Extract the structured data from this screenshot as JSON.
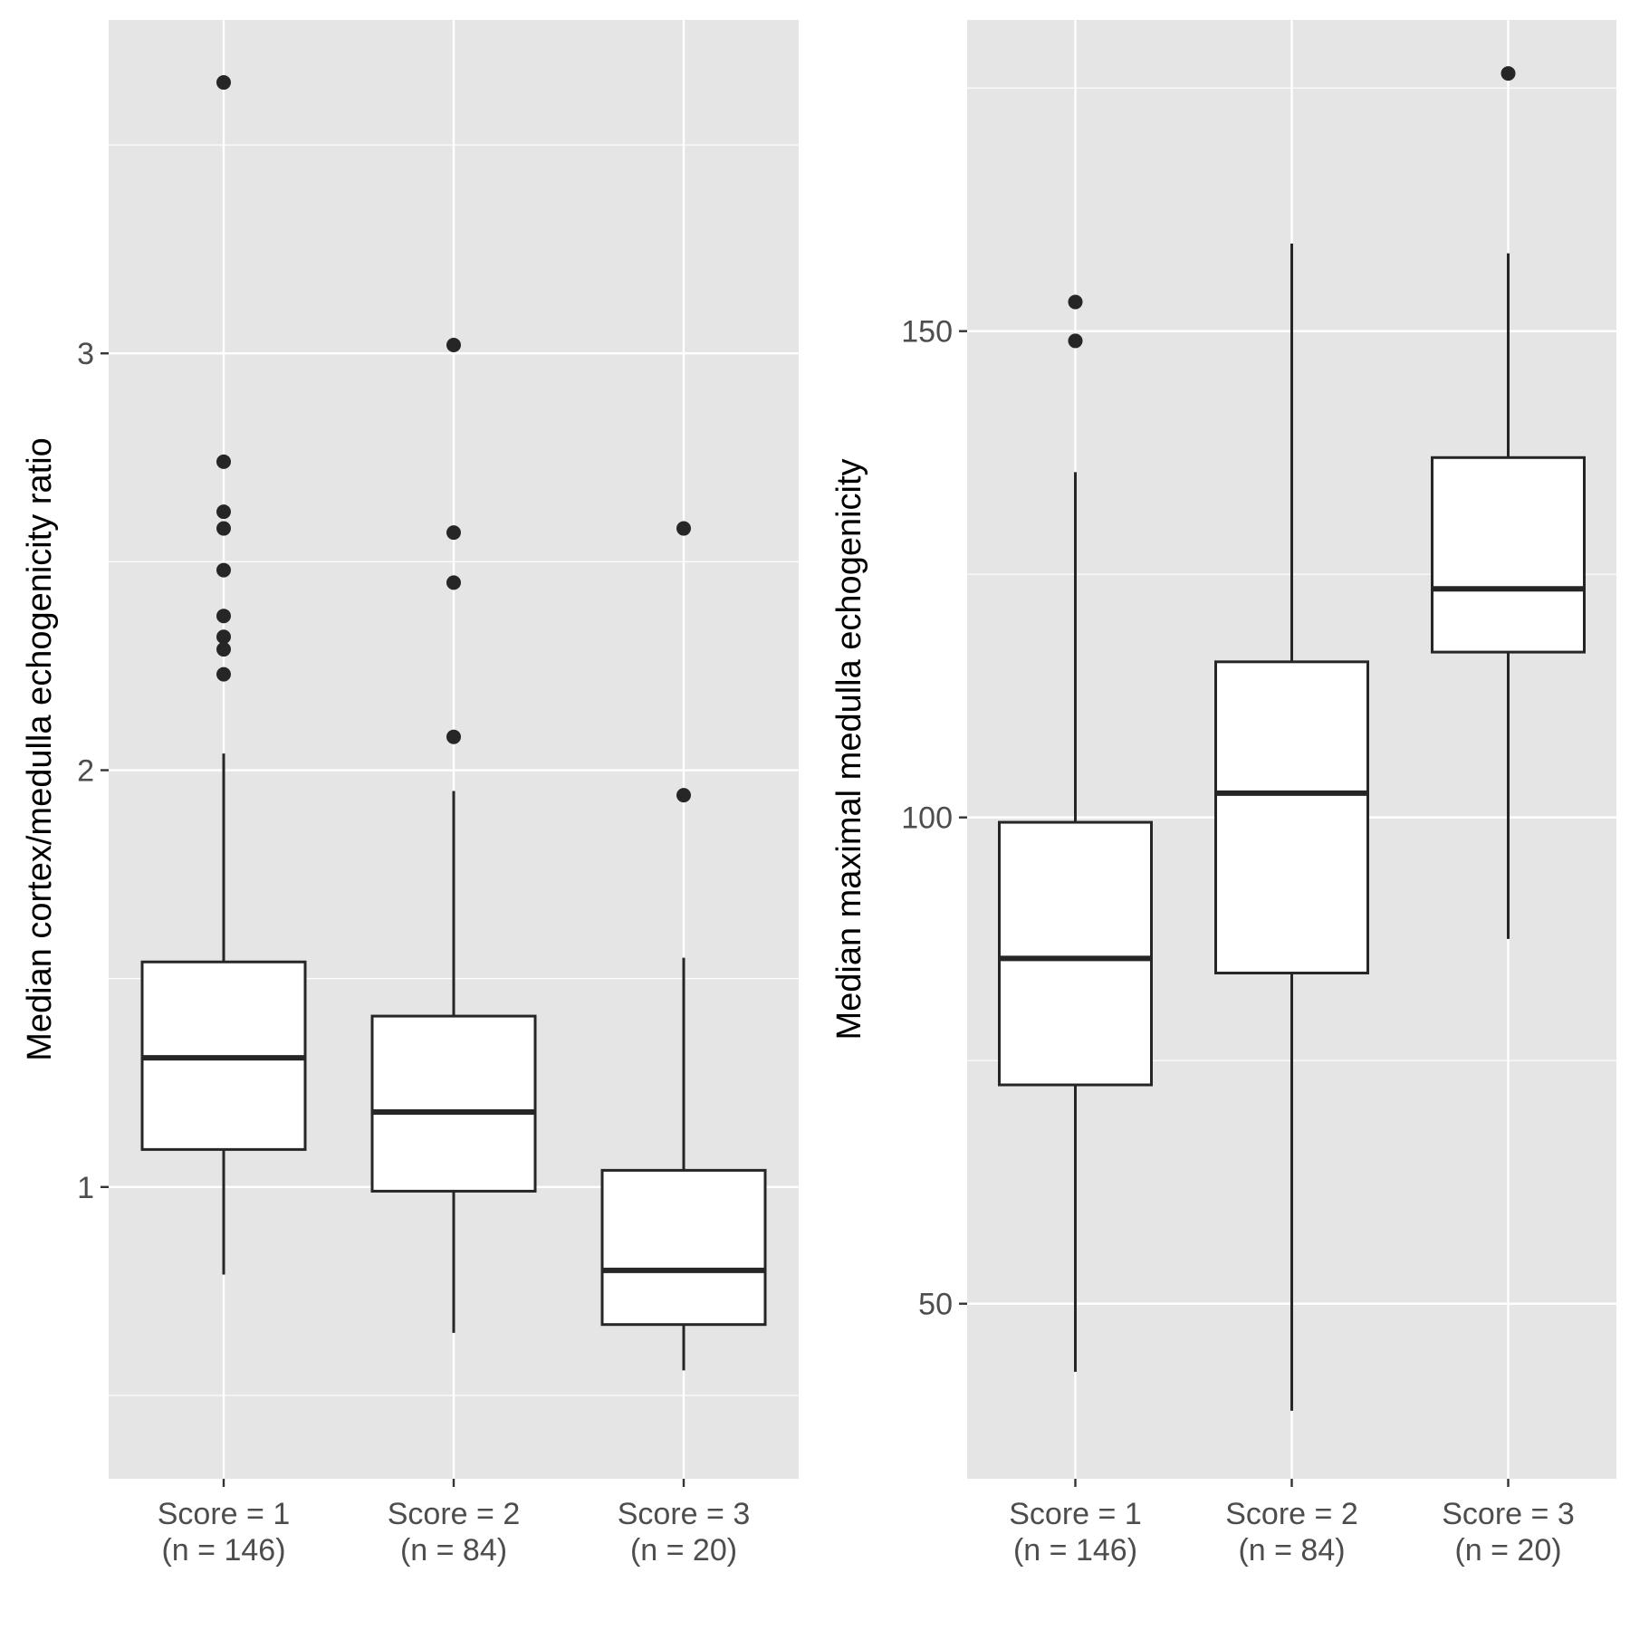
{
  "chart_data": [
    {
      "type": "box",
      "ylabel": "Median cortex/medulla echogenicity ratio",
      "xlabel": "",
      "categories": [
        "Score = 1\n(n = 146)",
        "Score = 2\n(n = 84)",
        "Score = 3\n(n = 20)"
      ],
      "ylim": [
        0.3,
        3.8
      ],
      "y_ticks": [
        1,
        2,
        3
      ],
      "boxes": [
        {
          "whisker_low": 0.79,
          "q1": 1.09,
          "median": 1.31,
          "q3": 1.54,
          "whisker_high": 2.04,
          "outliers": [
            3.65,
            2.74,
            2.62,
            2.58,
            2.48,
            2.37,
            2.32,
            2.29,
            2.23
          ]
        },
        {
          "whisker_low": 0.65,
          "q1": 0.99,
          "median": 1.18,
          "q3": 1.41,
          "whisker_high": 1.95,
          "outliers": [
            3.02,
            2.57,
            2.45,
            2.08
          ]
        },
        {
          "whisker_low": 0.56,
          "q1": 0.67,
          "median": 0.8,
          "q3": 1.04,
          "whisker_high": 1.55,
          "outliers": [
            2.58,
            1.94
          ]
        }
      ],
      "grid": true,
      "panel_background": "#e5e5e5",
      "grid_color": "#ffffff",
      "box_fill": "#ffffff",
      "line_color": "#262626"
    },
    {
      "type": "box",
      "ylabel": "Median maximal medulla echogenicity",
      "xlabel": "",
      "categories": [
        "Score = 1\n(n = 146)",
        "Score = 2\n(n = 84)",
        "Score = 3\n(n = 20)"
      ],
      "ylim": [
        32,
        182
      ],
      "y_ticks": [
        50,
        100,
        150
      ],
      "boxes": [
        {
          "whisker_low": 43,
          "q1": 72.5,
          "median": 85.5,
          "q3": 99.5,
          "whisker_high": 135.5,
          "outliers": [
            153,
            149
          ]
        },
        {
          "whisker_low": 39,
          "q1": 84,
          "median": 102.5,
          "q3": 116,
          "whisker_high": 159
        },
        {
          "whisker_low": 87.5,
          "q1": 117,
          "median": 123.5,
          "q3": 137,
          "whisker_high": 158,
          "outliers": [
            176.5
          ]
        }
      ],
      "grid": true,
      "panel_background": "#e5e5e5",
      "grid_color": "#ffffff",
      "box_fill": "#ffffff",
      "line_color": "#262626"
    }
  ]
}
